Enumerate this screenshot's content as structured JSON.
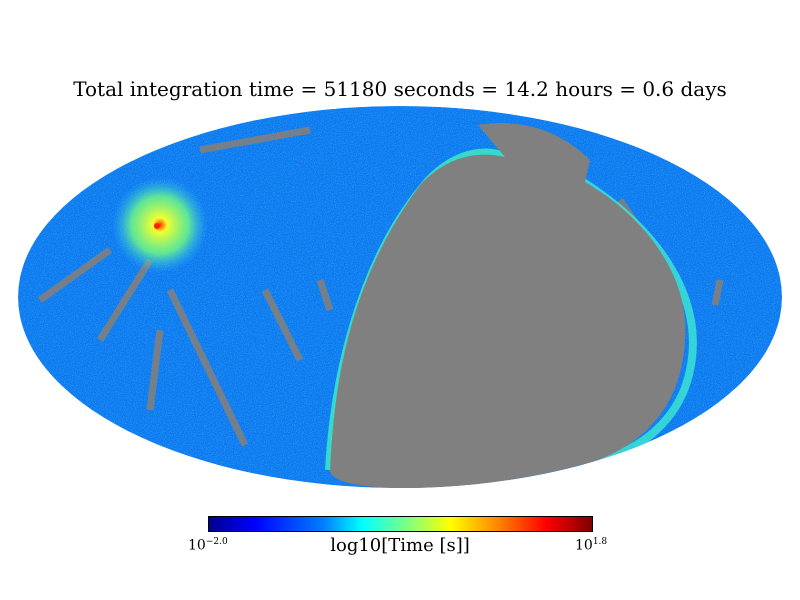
{
  "chart_data": {
    "type": "heatmap",
    "projection": "mollweide",
    "title": "Total integration time = 51180 seconds = 14.2 hours = 0.6 days",
    "colorbar": {
      "label": "log10[Time [s]]",
      "min_base": "10",
      "min_exp": "−2.0",
      "max_base": "10",
      "max_exp": "1.8",
      "range_log10": [
        -2.0,
        1.8
      ],
      "colormap": "jet"
    },
    "missing_color": "#808080",
    "background_value_color": "#1060ff",
    "hotspot_color": "#e0ff30"
  }
}
